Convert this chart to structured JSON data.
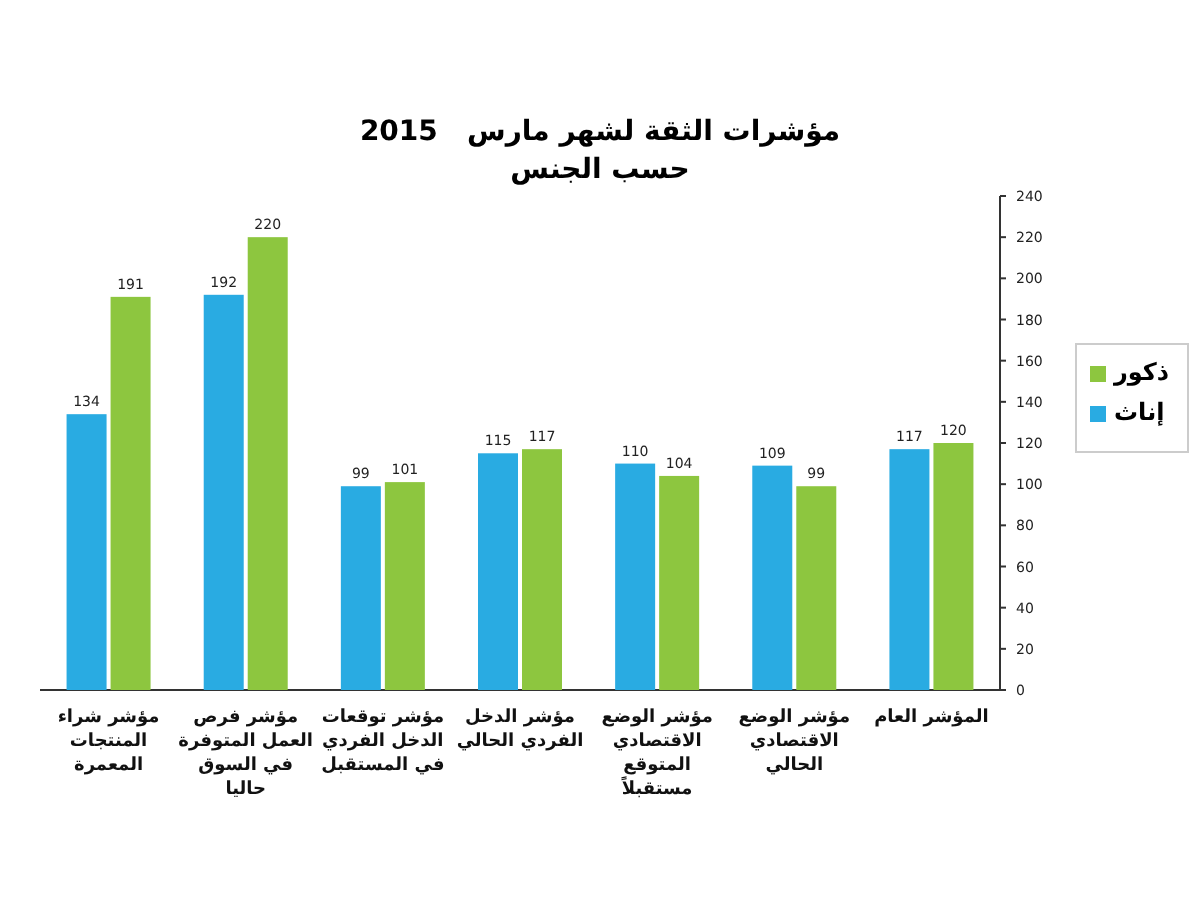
{
  "chart_data": {
    "type": "bar",
    "title": "مؤشرات الثقة لشهر مارس   2015",
    "subtitle": "حسب الجنس",
    "categories": [
      "مؤشر شراء المنتجات المعمرة",
      "مؤشر فرص العمل المتوفرة في السوق حاليا",
      "مؤشر توقعات الدخل الفردي في المستقبل",
      "مؤشر الدخل الفردي الحالي",
      "مؤشر الوضع الاقتصادي المتوقع مستقبلاً",
      "مؤشر الوضع الاقتصادي الحالي",
      "المؤشر العام"
    ],
    "series": [
      {
        "name": "إناث",
        "color": "#29abe2",
        "values": [
          134,
          192,
          99,
          115,
          110,
          109,
          117
        ]
      },
      {
        "name": "ذكور",
        "color": "#8dc63f",
        "values": [
          191,
          220,
          101,
          117,
          104,
          99,
          120
        ]
      }
    ],
    "ylim": [
      0,
      240
    ],
    "yticks": [
      0,
      20,
      40,
      60,
      80,
      100,
      120,
      140,
      160,
      180,
      200,
      220,
      240
    ],
    "data_labels": true,
    "legend": "right",
    "grid": false
  }
}
